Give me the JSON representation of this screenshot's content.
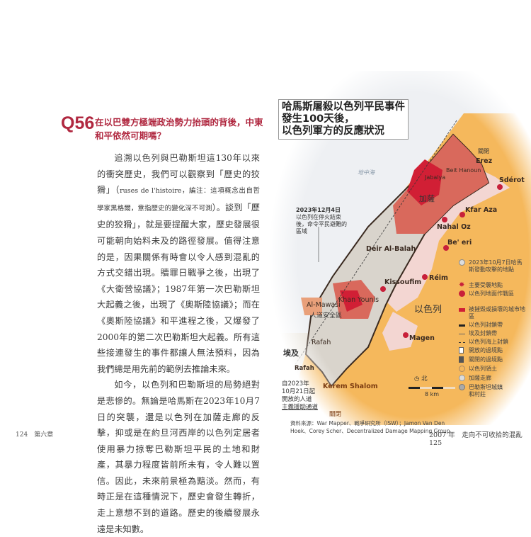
{
  "left_page": {
    "question_number": "Q56",
    "question_title": "在以巴雙方極端政治勢力抬頭的背後，中東和平依然可期嗎？",
    "paragraph1_a": "追溯以色列與巴勒斯坦這130年以來的衝突歷史，我們可以觀察到「歷史的狡猾」（",
    "paragraph1_note": "ruses de l'histoire，編注：這項概念出自哲學家黑格爾，意指歷史的變化深不可測",
    "paragraph1_b": "）。談到「歷史的狡猾」，就是要提醒大家，歷史發展很可能朝向始料未及的路徑發展。值得注意的是，因果關係有時會以令人感到混亂的方式交錯出現。贖罪日戰爭之後，出現了《大衛營協議》；1987年第一次巴勒斯坦大起義之後，出現了《奧斯陸協議》；而在《奧斯陸協議》和平進程之後，又爆發了2000年的第二次巴勒斯坦大起義。所有這些接連發生的事件都讓人無法預料，因為我們總是用先前的範例去推論未來。",
    "paragraph2": "如今，以色列和巴勒斯坦的局勢絕對是悲慘的。無論是哈馬斯在2023年10月7日的突襲，還是以色列在加薩走廊的反擊，抑或是在約旦河西岸的以色列定居者使用暴力掠奪巴勒斯坦平民的土地和財產，其暴力程度皆前所未有，令人難以置信。因此，未來前景極為黯淡。然而，有時正是在這種情況下，歷史會發生轉折，走上意想不到的道路。歷史的後續發展永遠是未知數。",
    "page_number": "124",
    "chapter": "第六章"
  },
  "right_page": {
    "map_title_lines": [
      "哈馬斯屠殺以色列平民事件",
      "發生100天後，",
      "以色列軍方的反應狀況"
    ],
    "labels": {
      "sea": "地中海",
      "gaza": "加薩",
      "israel": "以色列",
      "egypt": "埃及",
      "jabalya": "Jabalya",
      "beit_hanoun": "Beit Hanoun",
      "erez": "Erez",
      "closed_top": "關閉",
      "sderot": "Sdérot",
      "kfar_aza": "Kfar Aza",
      "nahal_oz": "Nahal Oz",
      "beeri": "Be' eri",
      "deir_al_balah": "Deir Al-Balah",
      "kissoufim": "Kissoufim",
      "reim": "Réim",
      "al_mawasi": "Al-Mawasi",
      "safe_zone": "人道安全區",
      "khan_younis": "Khan Younis",
      "rafah_city": "Rafah",
      "rafah_crossing": "Rafah",
      "kerem_shalom": "Kerem Shalom",
      "closed_bottom": "關閉",
      "magen": "Magen",
      "north": "北",
      "scale": "8 km"
    },
    "annotation_dec": {
      "date": "2023年12月4日",
      "text": "以色列在停火結束後，命令平民避難的區域"
    },
    "annotation_rafah": [
      "自2023年",
      "10月21日起",
      "開放的人道",
      "主義援助通道"
    ],
    "legend": [
      {
        "icon": "attack-site-circle",
        "label": "2023年10月7日哈馬斯發動攻擊的地點"
      },
      {
        "icon": "star-burst",
        "label": "主要受襲地點"
      },
      {
        "icon": "red-dot",
        "label": "以色列地面作戰區"
      },
      {
        "icon": "destroyed-area",
        "label": "被摧毀或損壞的城市地區"
      },
      {
        "icon": "thick-line",
        "label": "以色列封鎖帶"
      },
      {
        "icon": "thin-line",
        "label": "埃及封鎖帶"
      },
      {
        "icon": "dashed-line",
        "label": "以色列海上封鎖"
      },
      {
        "icon": "open-crossing",
        "label": "開放的過境點"
      },
      {
        "icon": "closed-crossing",
        "label": "關閉的過境點"
      },
      {
        "icon": "israel-territory",
        "label": "以色列領土"
      },
      {
        "icon": "gaza-strip",
        "label": "加薩走廊"
      },
      {
        "icon": "palestinian-towns",
        "label": "巴勒斯坦城鎮和村莊"
      }
    ],
    "source": "資料來源：War Mapper、戰爭研究所（ISW）；Jamon Van Den Hoek、Corey Scher、Decentralized Damage Mapping Group",
    "running_head": "2007 年　走向不可收拾的混亂",
    "page_number": "125",
    "colors": {
      "accent": "#b02840",
      "israel": "#f5b85c",
      "gaza_zone": "#d9695c",
      "destroyed": "#d11f35",
      "sea": "#eef0f3"
    }
  }
}
